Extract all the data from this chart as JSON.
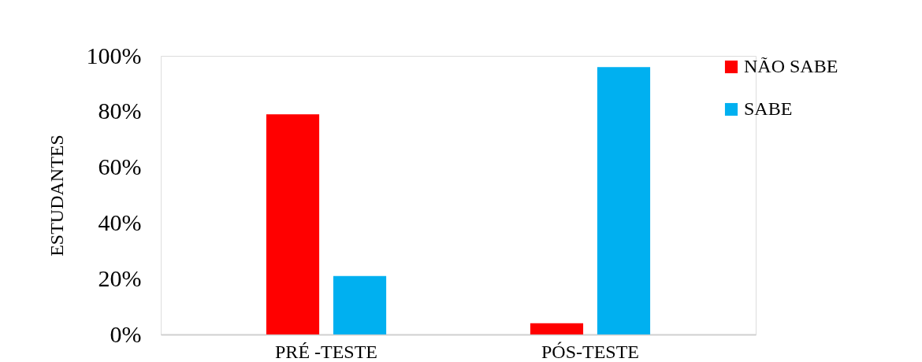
{
  "chart_data": {
    "type": "bar",
    "ylabel": "ESTUDANTES",
    "categories": [
      "PRÉ -TESTE",
      "PÓS-TESTE"
    ],
    "series": [
      {
        "name": "NÃO SABE",
        "color": "#ff0000",
        "values": [
          79,
          4
        ]
      },
      {
        "name": "SABE",
        "color": "#00b0f0",
        "values": [
          21,
          96
        ]
      }
    ],
    "ylim": [
      0,
      100
    ],
    "yticks": [
      {
        "value": 0,
        "label": "0%"
      },
      {
        "value": 20,
        "label": "20%"
      },
      {
        "value": 40,
        "label": "40%"
      },
      {
        "value": 60,
        "label": "60%"
      },
      {
        "value": 80,
        "label": "80%"
      },
      {
        "value": 100,
        "label": "100%"
      }
    ],
    "grid": false,
    "legend": "top right"
  }
}
